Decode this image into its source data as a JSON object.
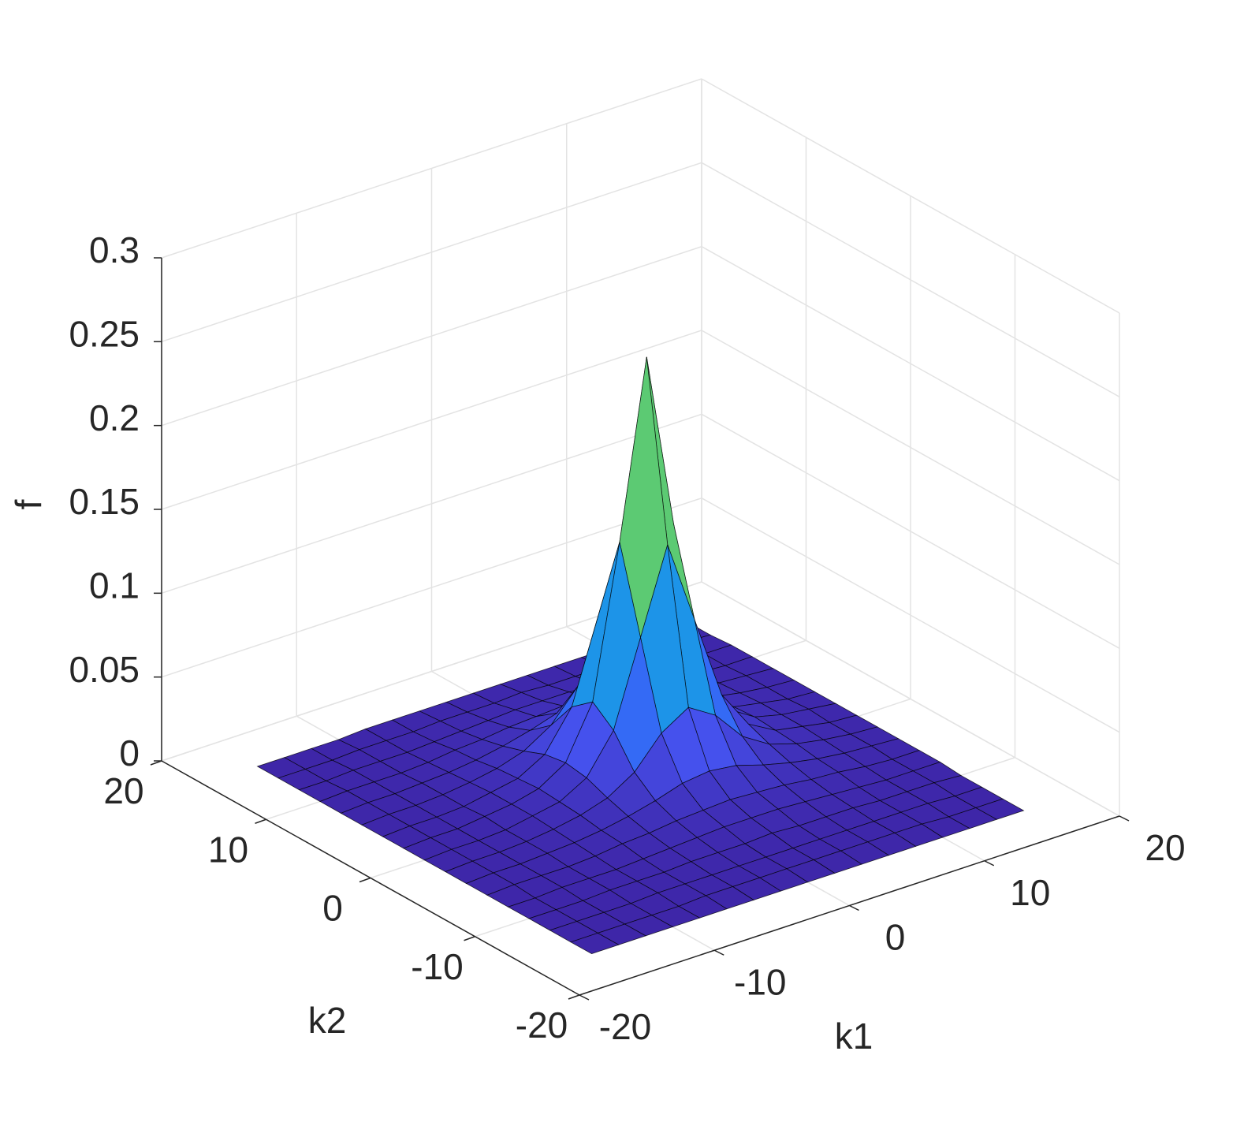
{
  "chart_data": {
    "type": "surface",
    "xlabel": "k1",
    "ylabel": "k2",
    "zlabel": "f",
    "x": [
      -16,
      -14,
      -12,
      -10,
      -8,
      -6,
      -4,
      -2,
      0,
      2,
      4,
      6,
      8,
      10,
      12,
      14,
      16
    ],
    "y": [
      -16,
      -14,
      -12,
      -10,
      -8,
      -6,
      -4,
      -2,
      0,
      2,
      4,
      6,
      8,
      10,
      12,
      14,
      16
    ],
    "z": [
      [
        0,
        0,
        0,
        0,
        0,
        0,
        0,
        0,
        0,
        0,
        0,
        0,
        0,
        0,
        0,
        0,
        0
      ],
      [
        0,
        0,
        0,
        0,
        0,
        0.001,
        0.001,
        0.001,
        0.001,
        0.001,
        0.001,
        0.001,
        0.001,
        0.001,
        0,
        0,
        0
      ],
      [
        0,
        0,
        0,
        0,
        0.001,
        0.001,
        0.001,
        0.001,
        0.001,
        0.001,
        0.001,
        0.001,
        0.001,
        0.001,
        0.001,
        0,
        0
      ],
      [
        0,
        0,
        0,
        0.001,
        0.001,
        0.001,
        0.002,
        0.002,
        0.002,
        0.003,
        0.002,
        0.002,
        0.002,
        0.001,
        0.001,
        0.001,
        0
      ],
      [
        0,
        0,
        0.001,
        0.001,
        0.001,
        0.002,
        0.003,
        0.004,
        0.005,
        0.005,
        0.005,
        0.004,
        0.003,
        0.002,
        0.001,
        0.001,
        0.001
      ],
      [
        0,
        0.001,
        0.001,
        0.001,
        0.002,
        0.004,
        0.005,
        0.007,
        0.008,
        0.009,
        0.008,
        0.007,
        0.005,
        0.004,
        0.002,
        0.001,
        0.001
      ],
      [
        0,
        0.001,
        0.001,
        0.002,
        0.003,
        0.005,
        0.008,
        0.012,
        0.017,
        0.019,
        0.017,
        0.012,
        0.008,
        0.005,
        0.003,
        0.002,
        0.001
      ],
      [
        0,
        0.001,
        0.001,
        0.002,
        0.004,
        0.007,
        0.012,
        0.022,
        0.04,
        0.05,
        0.04,
        0.022,
        0.012,
        0.007,
        0.004,
        0.002,
        0.001
      ],
      [
        0,
        0.001,
        0.001,
        0.002,
        0.005,
        0.008,
        0.017,
        0.04,
        0.09,
        0.14,
        0.09,
        0.04,
        0.017,
        0.008,
        0.005,
        0.002,
        0.001
      ],
      [
        0,
        0.001,
        0.001,
        0.003,
        0.005,
        0.009,
        0.019,
        0.05,
        0.14,
        0.245,
        0.14,
        0.05,
        0.019,
        0.009,
        0.005,
        0.003,
        0.001
      ],
      [
        0,
        0.001,
        0.001,
        0.002,
        0.005,
        0.008,
        0.017,
        0.04,
        0.09,
        0.14,
        0.09,
        0.04,
        0.017,
        0.008,
        0.005,
        0.002,
        0.001
      ],
      [
        0,
        0.001,
        0.001,
        0.002,
        0.004,
        0.007,
        0.012,
        0.022,
        0.04,
        0.05,
        0.04,
        0.022,
        0.012,
        0.007,
        0.004,
        0.002,
        0.001
      ],
      [
        0,
        0.001,
        0.001,
        0.002,
        0.003,
        0.005,
        0.008,
        0.012,
        0.017,
        0.019,
        0.017,
        0.012,
        0.008,
        0.005,
        0.003,
        0.002,
        0.001
      ],
      [
        0,
        0.001,
        0.001,
        0.001,
        0.002,
        0.004,
        0.005,
        0.007,
        0.008,
        0.009,
        0.008,
        0.007,
        0.005,
        0.004,
        0.002,
        0.001,
        0.001
      ],
      [
        0,
        0,
        0.001,
        0.001,
        0.001,
        0.002,
        0.003,
        0.004,
        0.005,
        0.005,
        0.005,
        0.004,
        0.003,
        0.002,
        0.001,
        0.001,
        0.001
      ],
      [
        0,
        0,
        0,
        0.001,
        0.001,
        0.001,
        0.002,
        0.002,
        0.002,
        0.003,
        0.002,
        0.002,
        0.002,
        0.001,
        0.001,
        0.001,
        0
      ],
      [
        0,
        0,
        0,
        0,
        0.001,
        0.001,
        0.001,
        0.001,
        0.001,
        0.001,
        0.001,
        0.001,
        0.001,
        0.001,
        0.001,
        0,
        0
      ]
    ],
    "xlim": [
      -20,
      20
    ],
    "ylim": [
      -20,
      20
    ],
    "zlim": [
      0,
      0.3
    ],
    "xticks": [
      -20,
      -10,
      0,
      10,
      20
    ],
    "yticks": [
      -20,
      -10,
      0,
      10,
      20
    ],
    "zticks": [
      0,
      0.05,
      0.1,
      0.15,
      0.2,
      0.25,
      0.3
    ],
    "grid": true,
    "colormap": "parula",
    "edgecolor": "#000000"
  }
}
